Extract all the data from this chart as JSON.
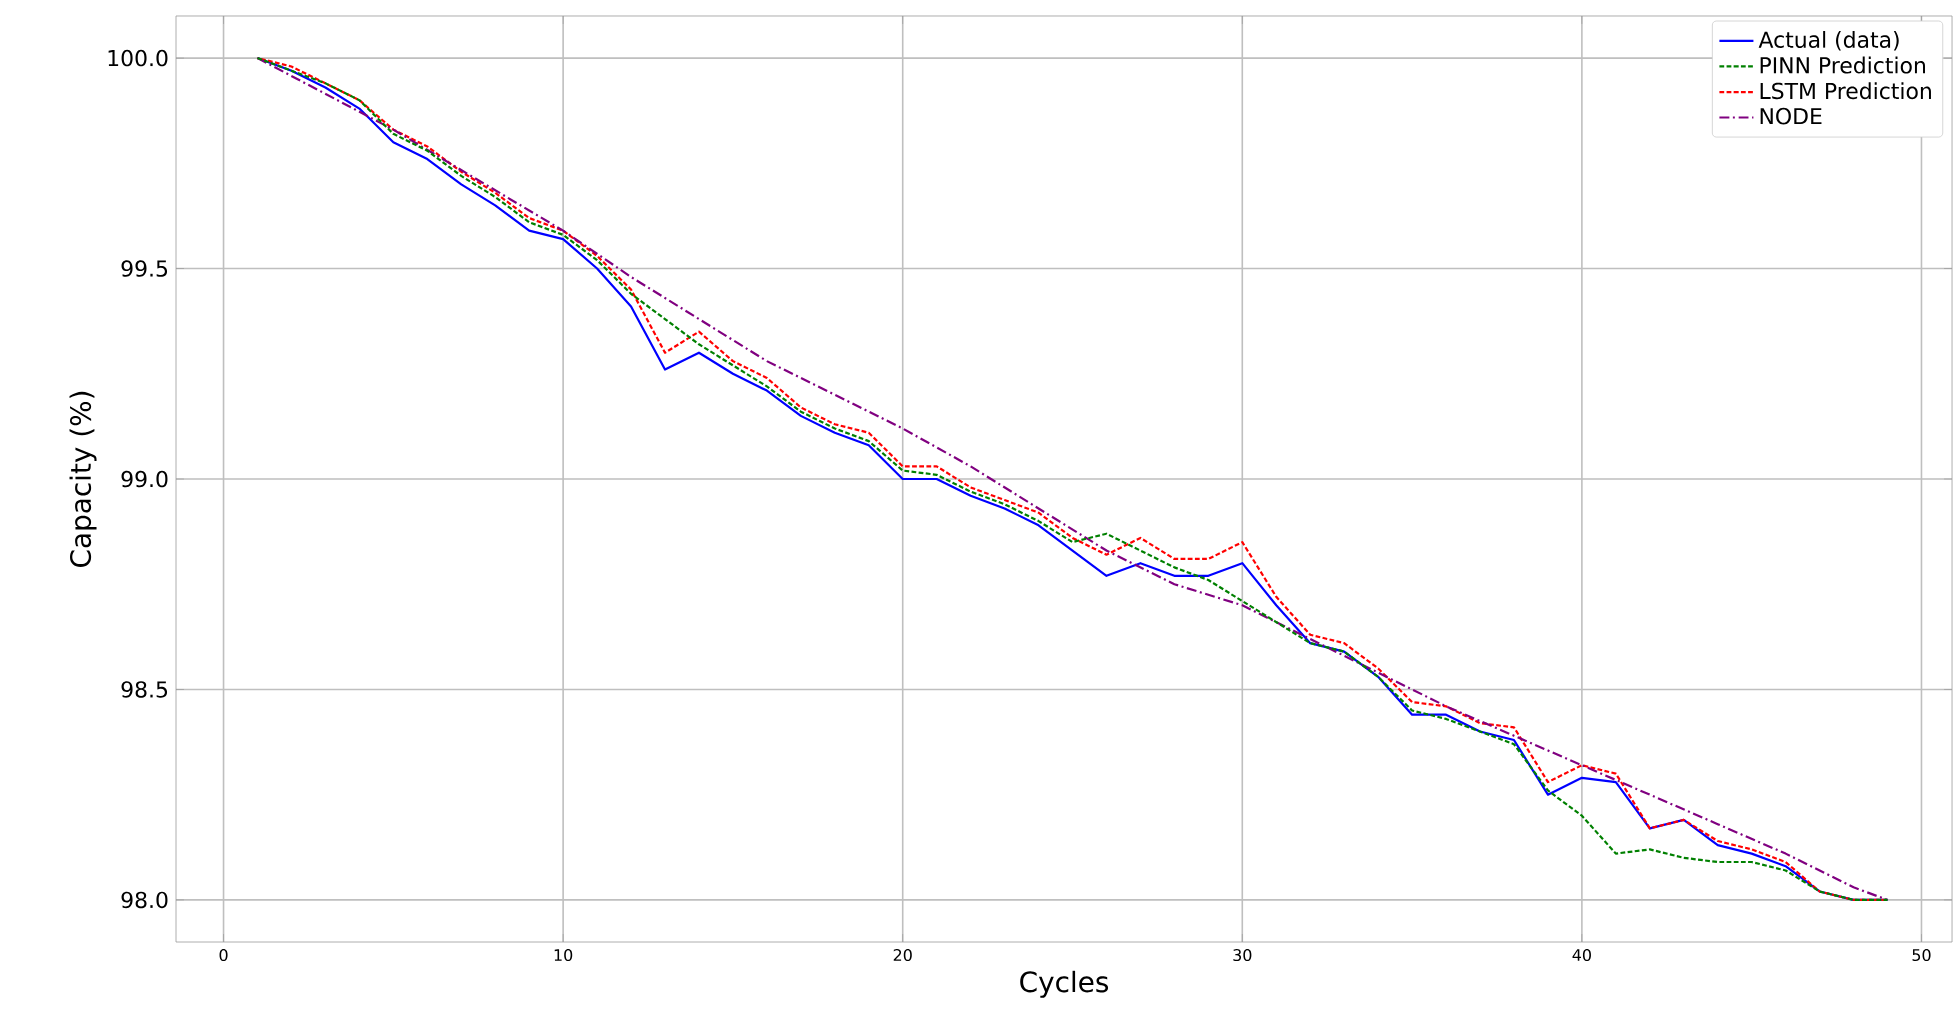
{
  "chart_data": {
    "type": "line",
    "xlabel": "Cycles",
    "ylabel": "Capacity (%)",
    "xlim": [
      -1.4,
      50.9
    ],
    "ylim": [
      97.9,
      100.1
    ],
    "xticks": [
      0,
      10,
      20,
      30,
      40,
      50
    ],
    "yticks": [
      {
        "value": 98.0,
        "label": "98.0"
      },
      {
        "value": 98.5,
        "label": "98.5"
      },
      {
        "value": 99.0,
        "label": "99.0"
      },
      {
        "value": 99.5,
        "label": "99.5"
      },
      {
        "value": 100.0,
        "label": "100.0"
      }
    ],
    "grid": true,
    "legend": "top right",
    "x": [
      1,
      2,
      3,
      4,
      5,
      6,
      7,
      8,
      9,
      10,
      11,
      12,
      13,
      14,
      15,
      16,
      17,
      18,
      19,
      20,
      21,
      22,
      23,
      24,
      25,
      26,
      27,
      28,
      29,
      30,
      31,
      32,
      33,
      34,
      35,
      36,
      37,
      38,
      39,
      40,
      41,
      42,
      43,
      44,
      45,
      46,
      47,
      48,
      49
    ],
    "series": [
      {
        "name": "Actual (data)",
        "color": "#0000ff",
        "line_style": "solid",
        "values": [
          100.0,
          99.97,
          99.93,
          99.88,
          99.8,
          99.76,
          99.7,
          99.65,
          99.59,
          99.57,
          99.5,
          99.41,
          99.26,
          99.3,
          99.25,
          99.21,
          99.15,
          99.11,
          99.08,
          99.0,
          99.0,
          98.96,
          98.93,
          98.89,
          98.83,
          98.77,
          98.8,
          98.77,
          98.77,
          98.8,
          98.7,
          98.61,
          98.59,
          98.53,
          98.44,
          98.44,
          98.4,
          98.38,
          98.25,
          98.29,
          98.28,
          98.17,
          98.19,
          98.13,
          98.11,
          98.08,
          98.02,
          98.0,
          98.0
        ]
      },
      {
        "name": "PINN Prediction",
        "color": "#008000",
        "line_style": "dashed",
        "values": [
          100.0,
          99.97,
          99.94,
          99.9,
          99.82,
          99.78,
          99.72,
          99.67,
          99.61,
          99.58,
          99.52,
          99.44,
          99.38,
          99.32,
          99.27,
          99.22,
          99.16,
          99.12,
          99.09,
          99.02,
          99.01,
          98.97,
          98.94,
          98.9,
          98.85,
          98.87,
          98.83,
          98.79,
          98.76,
          98.71,
          98.66,
          98.61,
          98.59,
          98.53,
          98.45,
          98.43,
          98.4,
          98.37,
          98.26,
          98.2,
          98.11,
          98.12,
          98.1,
          98.09,
          98.09,
          98.07,
          98.02,
          98.0,
          98.0
        ]
      },
      {
        "name": "LSTM Prediction",
        "color": "#ff0000",
        "line_style": "dashed",
        "values": [
          100.0,
          99.98,
          99.94,
          99.9,
          99.83,
          99.79,
          99.73,
          99.68,
          99.62,
          99.59,
          99.53,
          99.45,
          99.3,
          99.35,
          99.28,
          99.24,
          99.17,
          99.13,
          99.11,
          99.03,
          99.03,
          98.98,
          98.95,
          98.92,
          98.86,
          98.82,
          98.86,
          98.81,
          98.81,
          98.85,
          98.72,
          98.63,
          98.61,
          98.55,
          98.47,
          98.46,
          98.42,
          98.41,
          98.28,
          98.32,
          98.3,
          98.17,
          98.19,
          98.14,
          98.12,
          98.09,
          98.02,
          98.0,
          98.0
        ]
      },
      {
        "name": "NODE",
        "color": "#800080",
        "line_style": "dashdot",
        "x": [
          1,
          5,
          10,
          12,
          14,
          16,
          18,
          20,
          22,
          24,
          26,
          28,
          30,
          32,
          34,
          36,
          38,
          40,
          42,
          44,
          46,
          48,
          49
        ],
        "values": [
          100.0,
          99.83,
          99.59,
          99.48,
          99.38,
          99.28,
          99.2,
          99.12,
          99.03,
          98.93,
          98.83,
          98.75,
          98.7,
          98.62,
          98.54,
          98.46,
          98.39,
          98.32,
          98.25,
          98.18,
          98.11,
          98.03,
          98.0
        ]
      }
    ]
  }
}
